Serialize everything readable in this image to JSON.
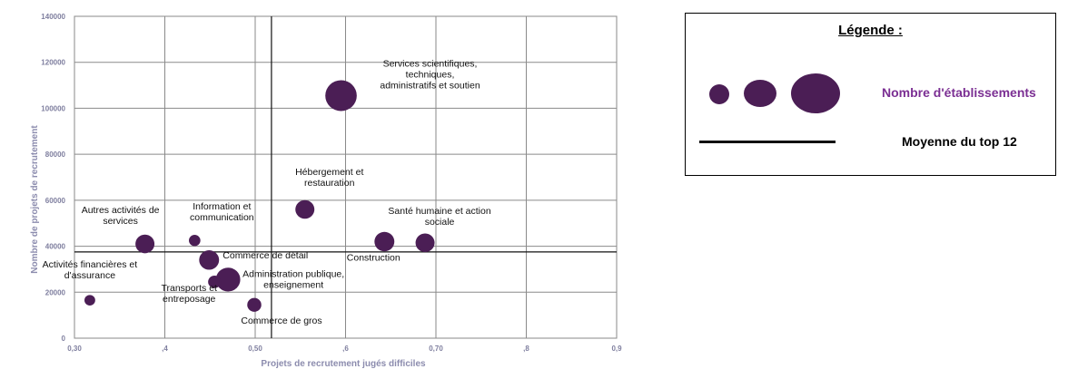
{
  "chart_data": {
    "type": "scatter",
    "xlabel": "Projets de recrutement jugés difficiles",
    "ylabel": "Nombre de projets de recrutement",
    "xlim": [
      0.3,
      0.9
    ],
    "ylim": [
      0,
      140000
    ],
    "x_ticks": [
      {
        "value": 0.3,
        "label": "0,30"
      },
      {
        "value": 0.4,
        "label": ",4"
      },
      {
        "value": 0.5,
        "label": "0,50"
      },
      {
        "value": 0.6,
        "label": ",6"
      },
      {
        "value": 0.7,
        "label": "0,70"
      },
      {
        "value": 0.8,
        "label": ",8"
      },
      {
        "value": 0.9,
        "label": "0,9"
      }
    ],
    "y_ticks": [
      {
        "value": 0,
        "label": "0"
      },
      {
        "value": 20000,
        "label": "20000"
      },
      {
        "value": 40000,
        "label": "40000"
      },
      {
        "value": 60000,
        "label": "60000"
      },
      {
        "value": 80000,
        "label": "80000"
      },
      {
        "value": 100000,
        "label": "100000"
      },
      {
        "value": 120000,
        "label": "120000"
      },
      {
        "value": 140000,
        "label": "140000"
      }
    ],
    "grid": true,
    "mean_lines": {
      "x": 0.518,
      "y": 37500
    },
    "bubble_color": "#4b1e55",
    "points": [
      {
        "label_lines": [
          "Services scientifiques,",
          "techniques,",
          "administratifs et soutien"
        ],
        "x": 0.595,
        "y": 105500,
        "size": 3
      },
      {
        "label_lines": [
          "Hébergement et",
          "restauration"
        ],
        "x": 0.555,
        "y": 56000,
        "size": 1.1
      },
      {
        "label_lines": [
          "Santé humaine et action",
          "sociale"
        ],
        "x": 0.688,
        "y": 41500,
        "size": 1.1
      },
      {
        "label_lines": [
          "Construction"
        ],
        "x": 0.643,
        "y": 42000,
        "size": 1.2
      },
      {
        "label_lines": [
          "Autres activités de",
          "services"
        ],
        "x": 0.378,
        "y": 41000,
        "size": 1.1
      },
      {
        "label_lines": [
          "Information et",
          "communication"
        ],
        "x": 0.433,
        "y": 42500,
        "size": 0.4
      },
      {
        "label_lines": [
          "Commerce de détail"
        ],
        "x": 0.449,
        "y": 34000,
        "size": 1.2
      },
      {
        "label_lines": [
          "Administration publique,",
          "enseignement"
        ],
        "x": 0.47,
        "y": 25500,
        "size": 1.8
      },
      {
        "label_lines": [
          "Transports et",
          "entreposage"
        ],
        "x": 0.455,
        "y": 24500,
        "size": 0.5
      },
      {
        "label_lines": [
          "Activités financières et",
          "d'assurance"
        ],
        "x": 0.317,
        "y": 16500,
        "size": 0.35
      },
      {
        "label_lines": [
          "Commerce de gros"
        ],
        "x": 0.499,
        "y": 14500,
        "size": 0.6
      }
    ]
  },
  "legend": {
    "title": "Légende :",
    "bubble_label": "Nombre d'établissements",
    "line_label": "Moyenne du top 12"
  }
}
